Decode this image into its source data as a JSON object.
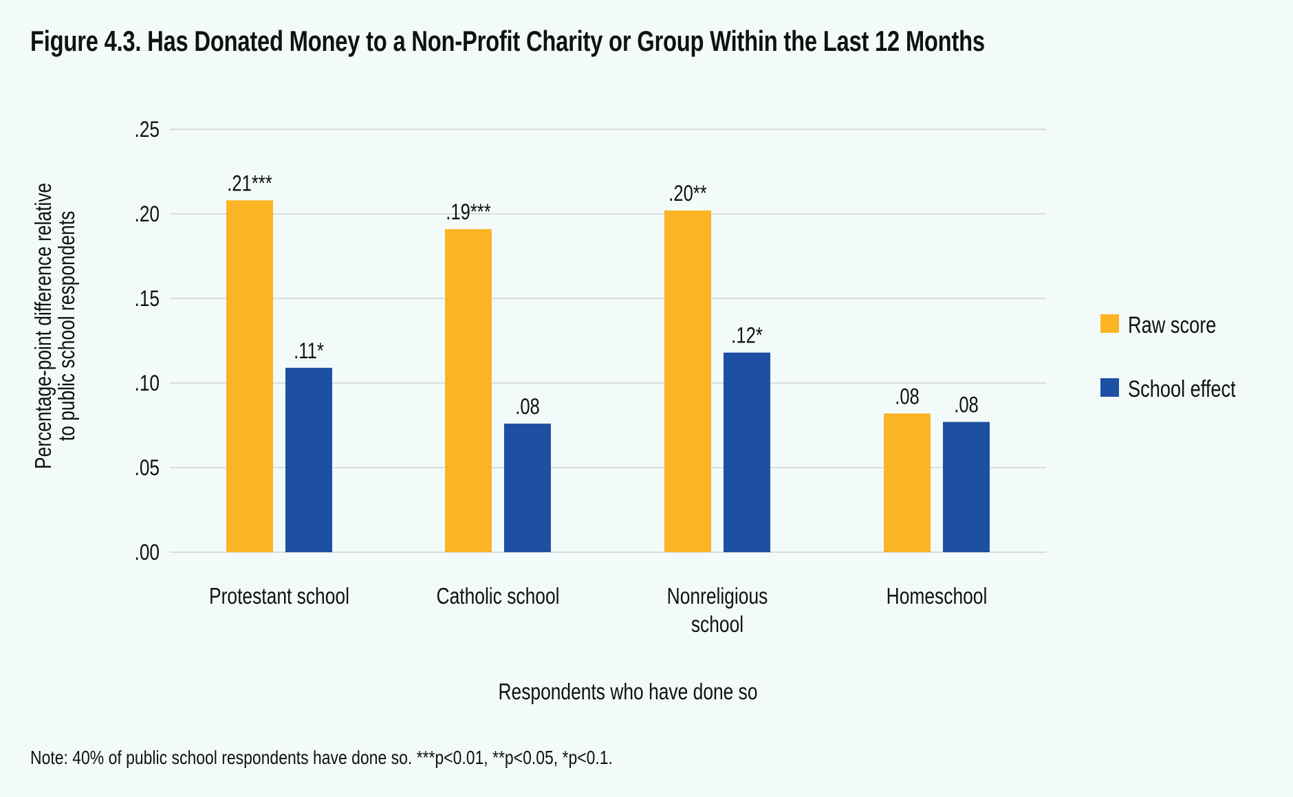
{
  "title": "Figure 4.3. Has Donated Money to a Non-Profit Charity or Group Within the Last 12 Months",
  "note": "Note: 40% of public school respondents have done so. ***p<0.01, **p<0.05, *p<0.1.",
  "chart_data": {
    "type": "bar",
    "title": "Figure 4.3. Has Donated Money to a Non-Profit Charity or Group Within the Last 12 Months",
    "xlabel": "Respondents who have done so",
    "ylabel": "Percentage-point difference relative to public school respondents",
    "ylabel_lines": [
      "Percentage-point difference relative",
      "to public school respondents"
    ],
    "ylim": [
      0,
      0.25
    ],
    "yticks": [
      0,
      0.05,
      0.1,
      0.15,
      0.2,
      0.25
    ],
    "ytick_labels": [
      ".00",
      ".05",
      ".10",
      ".15",
      ".20",
      ".25"
    ],
    "grid": true,
    "legend_position": "right",
    "categories": [
      "Protestant school",
      "Catholic school",
      "Nonreligious school",
      "Homeschool"
    ],
    "category_lines": [
      [
        "Protestant school"
      ],
      [
        "Catholic school"
      ],
      [
        "Nonreligious",
        "school"
      ],
      [
        "Homeschool"
      ]
    ],
    "series": [
      {
        "name": "Raw score",
        "color": "#fbb424",
        "values": [
          0.208,
          0.191,
          0.202,
          0.082
        ],
        "labels": [
          ".21***",
          ".19***",
          ".20**",
          ".08"
        ]
      },
      {
        "name": "School effect",
        "color": "#1d50a2",
        "values": [
          0.109,
          0.076,
          0.118,
          0.077
        ],
        "labels": [
          ".11*",
          ".08",
          ".12*",
          ".08"
        ]
      }
    ]
  }
}
